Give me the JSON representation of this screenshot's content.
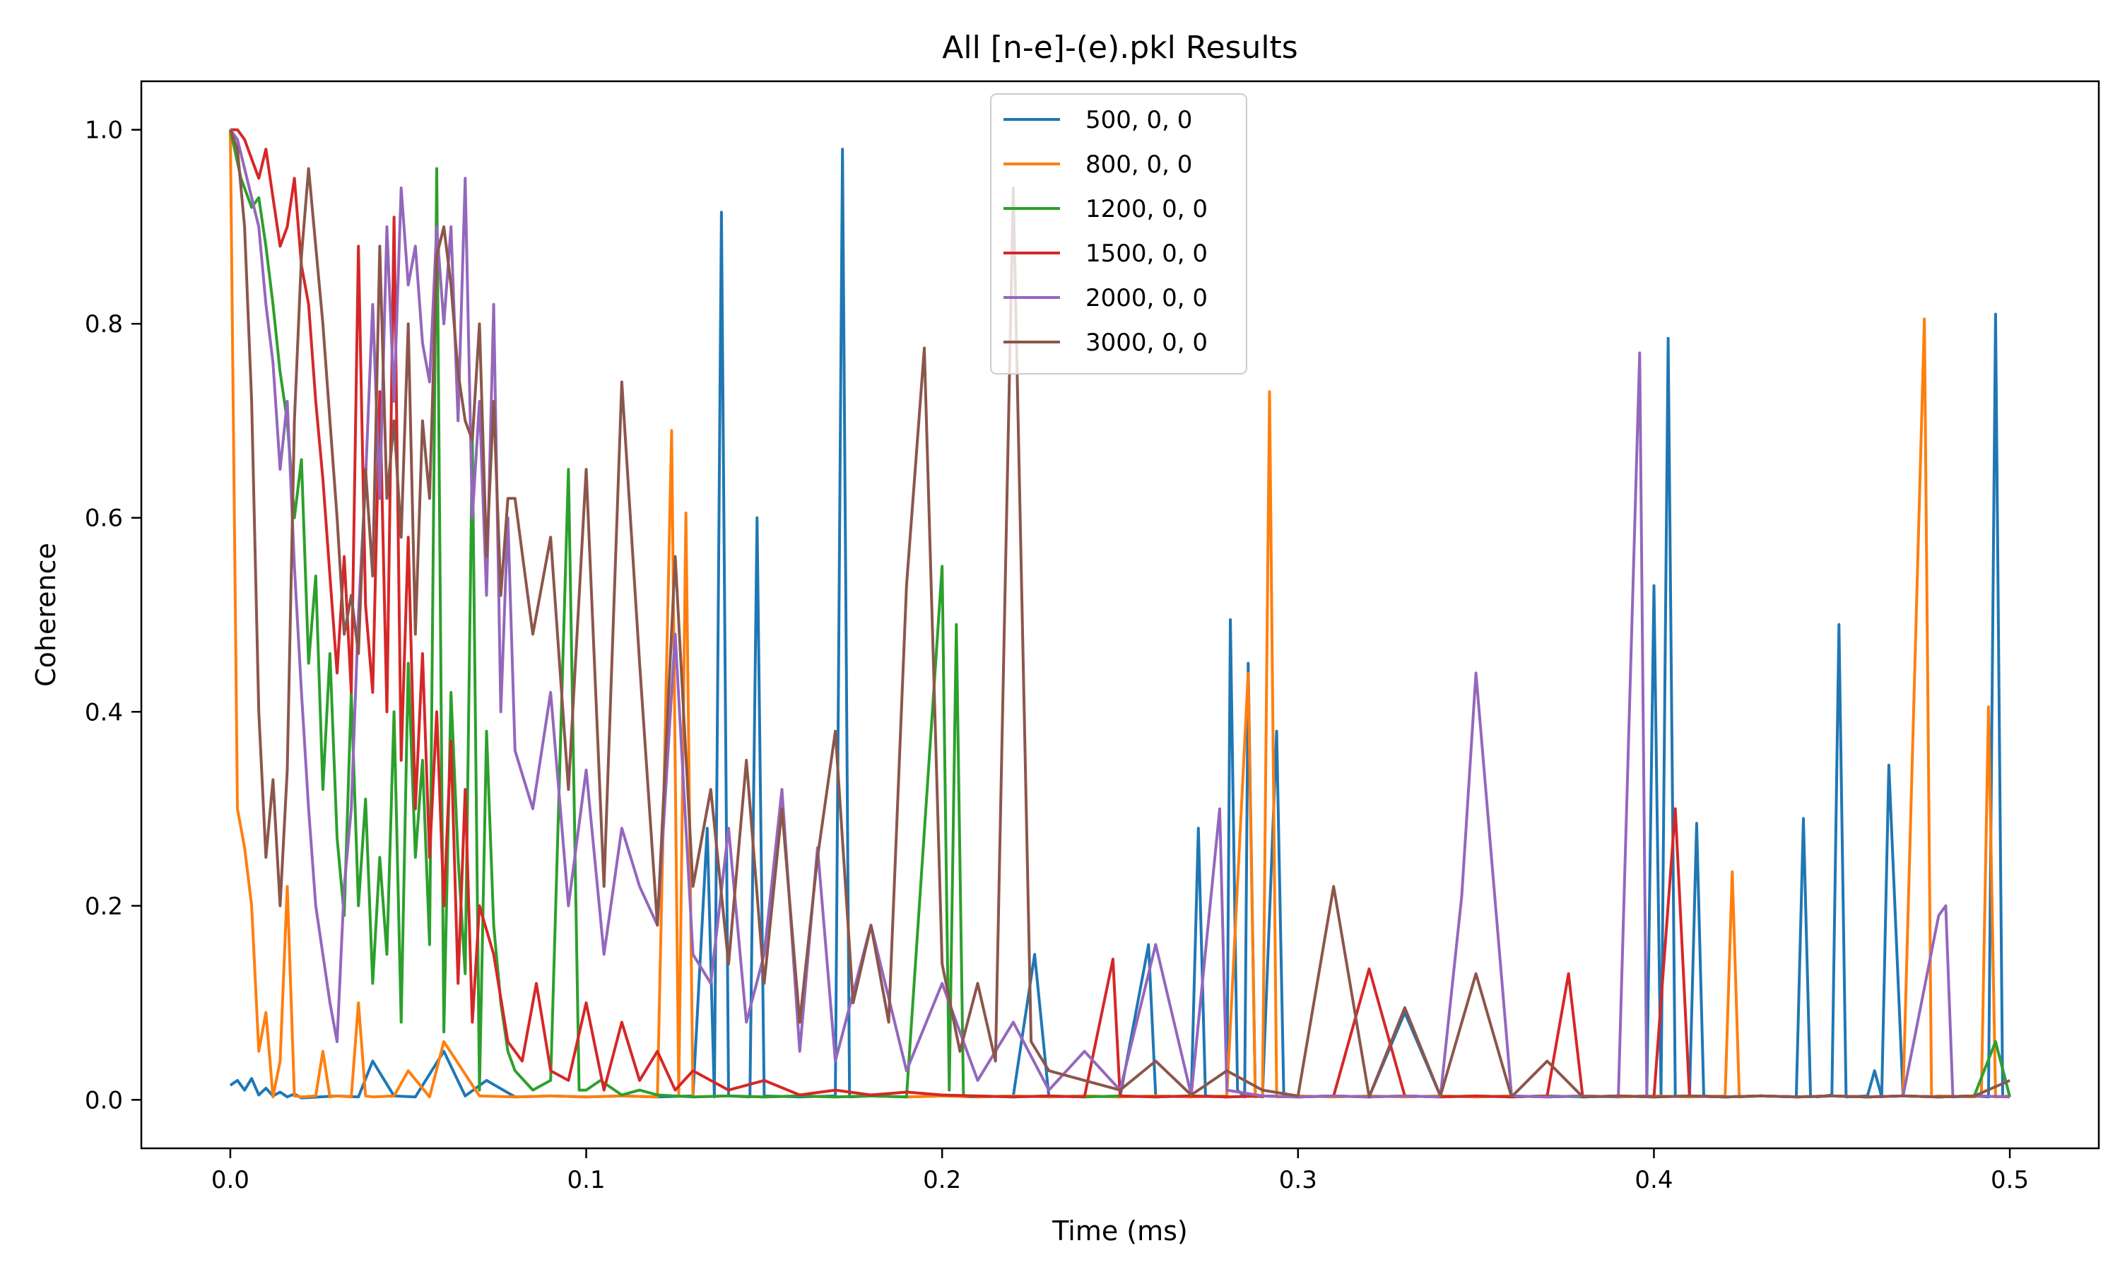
{
  "chart_data": {
    "type": "line",
    "title": "All [n-e]-(e).pkl Results",
    "xlabel": "Time (ms)",
    "ylabel": "Coherence",
    "xlim": [
      -0.025,
      0.525
    ],
    "ylim": [
      -0.05,
      1.05
    ],
    "xticks": [
      0.0,
      0.1,
      0.2,
      0.3,
      0.4,
      0.5
    ],
    "xtick_labels": [
      "0.0",
      "0.1",
      "0.2",
      "0.3",
      "0.4",
      "0.5"
    ],
    "yticks": [
      0.0,
      0.2,
      0.4,
      0.6,
      0.8,
      1.0
    ],
    "ytick_labels": [
      "0.0",
      "0.2",
      "0.4",
      "0.6",
      "0.8",
      "1.0"
    ],
    "grid": false,
    "legend_position": "top-center",
    "series": [
      {
        "name": "500, 0, 0",
        "color": "#1f77b4",
        "x": [
          0.0,
          0.002,
          0.004,
          0.006,
          0.008,
          0.01,
          0.012,
          0.014,
          0.016,
          0.018,
          0.02,
          0.03,
          0.036,
          0.04,
          0.046,
          0.052,
          0.06,
          0.066,
          0.072,
          0.08,
          0.09,
          0.1,
          0.11,
          0.12,
          0.13,
          0.134,
          0.136,
          0.138,
          0.14,
          0.146,
          0.148,
          0.15,
          0.16,
          0.17,
          0.172,
          0.174,
          0.18,
          0.19,
          0.2,
          0.21,
          0.22,
          0.226,
          0.23,
          0.24,
          0.25,
          0.258,
          0.26,
          0.27,
          0.272,
          0.274,
          0.28,
          0.281,
          0.283,
          0.285,
          0.286,
          0.288,
          0.29,
          0.294,
          0.296,
          0.3,
          0.31,
          0.32,
          0.33,
          0.34,
          0.35,
          0.36,
          0.37,
          0.38,
          0.39,
          0.398,
          0.4,
          0.402,
          0.404,
          0.406,
          0.41,
          0.412,
          0.414,
          0.42,
          0.43,
          0.44,
          0.442,
          0.444,
          0.446,
          0.45,
          0.452,
          0.454,
          0.46,
          0.462,
          0.464,
          0.466,
          0.47,
          0.48,
          0.49,
          0.494,
          0.496,
          0.498,
          0.5
        ],
        "y": [
          0.015,
          0.02,
          0.01,
          0.022,
          0.005,
          0.012,
          0.004,
          0.008,
          0.003,
          0.006,
          0.002,
          0.004,
          0.003,
          0.04,
          0.004,
          0.003,
          0.05,
          0.004,
          0.02,
          0.003,
          0.004,
          0.003,
          0.004,
          0.003,
          0.004,
          0.28,
          0.003,
          0.915,
          0.004,
          0.003,
          0.6,
          0.004,
          0.003,
          0.004,
          0.98,
          0.003,
          0.004,
          0.003,
          0.004,
          0.003,
          0.004,
          0.15,
          0.003,
          0.004,
          0.003,
          0.16,
          0.004,
          0.003,
          0.28,
          0.004,
          0.003,
          0.495,
          0.01,
          0.003,
          0.45,
          0.004,
          0.003,
          0.38,
          0.004,
          0.003,
          0.004,
          0.003,
          0.09,
          0.004,
          0.003,
          0.004,
          0.003,
          0.004,
          0.003,
          0.004,
          0.53,
          0.005,
          0.785,
          0.004,
          0.003,
          0.285,
          0.004,
          0.003,
          0.004,
          0.003,
          0.29,
          0.004,
          0.003,
          0.005,
          0.49,
          0.003,
          0.004,
          0.03,
          0.003,
          0.345,
          0.004,
          0.003,
          0.004,
          0.003,
          0.81,
          0.004,
          0.003
        ]
      },
      {
        "name": "800, 0, 0",
        "color": "#ff7f0e",
        "x": [
          0.0,
          0.002,
          0.004,
          0.006,
          0.008,
          0.01,
          0.012,
          0.014,
          0.016,
          0.018,
          0.02,
          0.024,
          0.026,
          0.028,
          0.03,
          0.034,
          0.036,
          0.038,
          0.04,
          0.046,
          0.05,
          0.056,
          0.06,
          0.07,
          0.08,
          0.09,
          0.1,
          0.11,
          0.12,
          0.124,
          0.126,
          0.128,
          0.13,
          0.14,
          0.15,
          0.16,
          0.17,
          0.18,
          0.19,
          0.2,
          0.21,
          0.22,
          0.23,
          0.24,
          0.25,
          0.26,
          0.27,
          0.28,
          0.286,
          0.288,
          0.29,
          0.292,
          0.294,
          0.3,
          0.31,
          0.32,
          0.33,
          0.34,
          0.35,
          0.36,
          0.37,
          0.38,
          0.39,
          0.4,
          0.41,
          0.42,
          0.422,
          0.424,
          0.43,
          0.44,
          0.45,
          0.46,
          0.47,
          0.476,
          0.478,
          0.48,
          0.49,
          0.492,
          0.494,
          0.496,
          0.5
        ],
        "y": [
          1.0,
          0.3,
          0.26,
          0.2,
          0.05,
          0.09,
          0.003,
          0.04,
          0.22,
          0.004,
          0.003,
          0.004,
          0.05,
          0.003,
          0.004,
          0.003,
          0.1,
          0.004,
          0.003,
          0.004,
          0.03,
          0.003,
          0.06,
          0.004,
          0.003,
          0.004,
          0.003,
          0.004,
          0.003,
          0.69,
          0.004,
          0.605,
          0.003,
          0.004,
          0.003,
          0.004,
          0.003,
          0.004,
          0.003,
          0.004,
          0.003,
          0.004,
          0.003,
          0.004,
          0.003,
          0.004,
          0.003,
          0.004,
          0.44,
          0.003,
          0.004,
          0.73,
          0.003,
          0.004,
          0.003,
          0.004,
          0.003,
          0.004,
          0.003,
          0.004,
          0.003,
          0.004,
          0.003,
          0.004,
          0.003,
          0.004,
          0.235,
          0.003,
          0.004,
          0.003,
          0.004,
          0.003,
          0.004,
          0.805,
          0.003,
          0.004,
          0.003,
          0.004,
          0.405,
          0.003,
          0.004
        ]
      },
      {
        "name": "1200, 0, 0",
        "color": "#2ca02c",
        "x": [
          0.0,
          0.003,
          0.006,
          0.008,
          0.01,
          0.012,
          0.014,
          0.016,
          0.018,
          0.02,
          0.022,
          0.024,
          0.026,
          0.028,
          0.03,
          0.032,
          0.034,
          0.036,
          0.038,
          0.04,
          0.042,
          0.044,
          0.046,
          0.048,
          0.05,
          0.052,
          0.054,
          0.056,
          0.058,
          0.06,
          0.062,
          0.064,
          0.066,
          0.068,
          0.07,
          0.072,
          0.074,
          0.076,
          0.078,
          0.08,
          0.085,
          0.09,
          0.095,
          0.098,
          0.1,
          0.104,
          0.11,
          0.115,
          0.12,
          0.13,
          0.14,
          0.15,
          0.16,
          0.17,
          0.18,
          0.19,
          0.2,
          0.202,
          0.204,
          0.206,
          0.208,
          0.21,
          0.22,
          0.23,
          0.24,
          0.25,
          0.26,
          0.27,
          0.28,
          0.29,
          0.3,
          0.31,
          0.32,
          0.33,
          0.34,
          0.35,
          0.36,
          0.37,
          0.38,
          0.39,
          0.4,
          0.41,
          0.42,
          0.43,
          0.44,
          0.45,
          0.46,
          0.47,
          0.48,
          0.49,
          0.496,
          0.5
        ],
        "y": [
          1.0,
          0.95,
          0.92,
          0.93,
          0.88,
          0.82,
          0.75,
          0.7,
          0.6,
          0.66,
          0.45,
          0.54,
          0.32,
          0.46,
          0.27,
          0.19,
          0.42,
          0.2,
          0.31,
          0.12,
          0.25,
          0.15,
          0.4,
          0.08,
          0.45,
          0.25,
          0.35,
          0.16,
          0.96,
          0.07,
          0.42,
          0.25,
          0.13,
          0.68,
          0.01,
          0.38,
          0.18,
          0.1,
          0.05,
          0.03,
          0.01,
          0.02,
          0.65,
          0.01,
          0.01,
          0.02,
          0.005,
          0.01,
          0.005,
          0.003,
          0.004,
          0.003,
          0.004,
          0.003,
          0.004,
          0.003,
          0.55,
          0.01,
          0.49,
          0.005,
          0.003,
          0.004,
          0.003,
          0.004,
          0.003,
          0.004,
          0.003,
          0.004,
          0.003,
          0.004,
          0.003,
          0.004,
          0.003,
          0.004,
          0.003,
          0.004,
          0.003,
          0.004,
          0.003,
          0.004,
          0.003,
          0.004,
          0.003,
          0.004,
          0.003,
          0.004,
          0.003,
          0.004,
          0.003,
          0.004,
          0.06,
          0.003
        ]
      },
      {
        "name": "1500, 0, 0",
        "color": "#d62728",
        "x": [
          0.0,
          0.002,
          0.004,
          0.006,
          0.008,
          0.01,
          0.012,
          0.014,
          0.016,
          0.018,
          0.02,
          0.022,
          0.024,
          0.026,
          0.028,
          0.03,
          0.032,
          0.034,
          0.036,
          0.038,
          0.04,
          0.042,
          0.044,
          0.046,
          0.048,
          0.05,
          0.052,
          0.054,
          0.056,
          0.058,
          0.06,
          0.062,
          0.064,
          0.066,
          0.068,
          0.07,
          0.074,
          0.078,
          0.082,
          0.086,
          0.09,
          0.095,
          0.1,
          0.105,
          0.11,
          0.115,
          0.12,
          0.125,
          0.13,
          0.14,
          0.15,
          0.16,
          0.17,
          0.18,
          0.19,
          0.2,
          0.21,
          0.22,
          0.23,
          0.24,
          0.248,
          0.25,
          0.26,
          0.27,
          0.28,
          0.29,
          0.3,
          0.31,
          0.32,
          0.33,
          0.34,
          0.35,
          0.36,
          0.37,
          0.376,
          0.38,
          0.39,
          0.4,
          0.406,
          0.41,
          0.42,
          0.43,
          0.44,
          0.45,
          0.46,
          0.47,
          0.48,
          0.49,
          0.5
        ],
        "y": [
          1.0,
          1.0,
          0.99,
          0.97,
          0.95,
          0.98,
          0.93,
          0.88,
          0.9,
          0.95,
          0.86,
          0.82,
          0.72,
          0.64,
          0.54,
          0.44,
          0.56,
          0.42,
          0.88,
          0.51,
          0.42,
          0.73,
          0.4,
          0.91,
          0.35,
          0.58,
          0.3,
          0.46,
          0.25,
          0.4,
          0.2,
          0.37,
          0.12,
          0.32,
          0.08,
          0.2,
          0.15,
          0.06,
          0.04,
          0.12,
          0.03,
          0.02,
          0.1,
          0.01,
          0.08,
          0.02,
          0.05,
          0.01,
          0.03,
          0.01,
          0.02,
          0.005,
          0.01,
          0.005,
          0.008,
          0.005,
          0.004,
          0.003,
          0.004,
          0.003,
          0.145,
          0.004,
          0.003,
          0.004,
          0.003,
          0.004,
          0.003,
          0.004,
          0.135,
          0.004,
          0.003,
          0.004,
          0.003,
          0.004,
          0.13,
          0.003,
          0.004,
          0.003,
          0.3,
          0.004,
          0.003,
          0.004,
          0.003,
          0.004,
          0.003,
          0.004,
          0.003,
          0.004,
          0.003
        ]
      },
      {
        "name": "2000, 0, 0",
        "color": "#9467bd",
        "x": [
          0.0,
          0.002,
          0.004,
          0.006,
          0.008,
          0.01,
          0.012,
          0.014,
          0.016,
          0.018,
          0.02,
          0.022,
          0.024,
          0.026,
          0.028,
          0.03,
          0.032,
          0.034,
          0.036,
          0.038,
          0.04,
          0.042,
          0.044,
          0.046,
          0.048,
          0.05,
          0.052,
          0.054,
          0.056,
          0.058,
          0.06,
          0.062,
          0.064,
          0.066,
          0.068,
          0.07,
          0.072,
          0.074,
          0.076,
          0.078,
          0.08,
          0.085,
          0.09,
          0.095,
          0.1,
          0.105,
          0.11,
          0.115,
          0.12,
          0.125,
          0.13,
          0.135,
          0.14,
          0.145,
          0.15,
          0.155,
          0.16,
          0.165,
          0.17,
          0.18,
          0.19,
          0.2,
          0.21,
          0.22,
          0.23,
          0.24,
          0.25,
          0.26,
          0.27,
          0.278,
          0.28,
          0.29,
          0.3,
          0.31,
          0.32,
          0.33,
          0.34,
          0.346,
          0.35,
          0.36,
          0.37,
          0.38,
          0.39,
          0.396,
          0.398,
          0.4,
          0.41,
          0.42,
          0.43,
          0.44,
          0.45,
          0.46,
          0.47,
          0.48,
          0.482,
          0.484,
          0.49,
          0.5
        ],
        "y": [
          1.0,
          0.99,
          0.96,
          0.93,
          0.9,
          0.82,
          0.76,
          0.65,
          0.72,
          0.55,
          0.42,
          0.3,
          0.2,
          0.15,
          0.1,
          0.06,
          0.22,
          0.3,
          0.5,
          0.64,
          0.82,
          0.62,
          0.9,
          0.72,
          0.94,
          0.84,
          0.88,
          0.78,
          0.74,
          0.9,
          0.8,
          0.9,
          0.7,
          0.95,
          0.6,
          0.72,
          0.52,
          0.82,
          0.4,
          0.6,
          0.36,
          0.3,
          0.42,
          0.2,
          0.34,
          0.15,
          0.28,
          0.22,
          0.18,
          0.48,
          0.15,
          0.12,
          0.28,
          0.08,
          0.15,
          0.32,
          0.05,
          0.26,
          0.04,
          0.18,
          0.03,
          0.12,
          0.02,
          0.08,
          0.01,
          0.05,
          0.01,
          0.16,
          0.005,
          0.3,
          0.01,
          0.004,
          0.003,
          0.004,
          0.003,
          0.004,
          0.003,
          0.21,
          0.44,
          0.004,
          0.003,
          0.004,
          0.003,
          0.77,
          0.004,
          0.003,
          0.004,
          0.003,
          0.004,
          0.003,
          0.004,
          0.003,
          0.004,
          0.19,
          0.2,
          0.003,
          0.004,
          0.003
        ]
      },
      {
        "name": "3000, 0, 0",
        "color": "#8c564b",
        "x": [
          0.0,
          0.002,
          0.004,
          0.006,
          0.008,
          0.01,
          0.012,
          0.014,
          0.016,
          0.018,
          0.02,
          0.022,
          0.024,
          0.026,
          0.028,
          0.03,
          0.032,
          0.034,
          0.036,
          0.038,
          0.04,
          0.042,
          0.044,
          0.046,
          0.048,
          0.05,
          0.052,
          0.054,
          0.056,
          0.058,
          0.06,
          0.062,
          0.064,
          0.066,
          0.068,
          0.07,
          0.072,
          0.074,
          0.076,
          0.078,
          0.08,
          0.085,
          0.09,
          0.095,
          0.1,
          0.105,
          0.11,
          0.115,
          0.12,
          0.125,
          0.13,
          0.135,
          0.14,
          0.145,
          0.15,
          0.155,
          0.16,
          0.165,
          0.17,
          0.175,
          0.18,
          0.185,
          0.19,
          0.195,
          0.2,
          0.205,
          0.21,
          0.215,
          0.22,
          0.225,
          0.23,
          0.24,
          0.25,
          0.26,
          0.27,
          0.28,
          0.29,
          0.3,
          0.31,
          0.32,
          0.33,
          0.34,
          0.35,
          0.36,
          0.37,
          0.38,
          0.39,
          0.4,
          0.41,
          0.42,
          0.43,
          0.44,
          0.45,
          0.46,
          0.47,
          0.48,
          0.49,
          0.5
        ],
        "y": [
          1.0,
          0.98,
          0.9,
          0.72,
          0.4,
          0.25,
          0.33,
          0.2,
          0.34,
          0.7,
          0.87,
          0.96,
          0.88,
          0.8,
          0.7,
          0.6,
          0.48,
          0.52,
          0.46,
          0.65,
          0.54,
          0.88,
          0.62,
          0.7,
          0.58,
          0.8,
          0.48,
          0.7,
          0.62,
          0.87,
          0.9,
          0.84,
          0.75,
          0.7,
          0.68,
          0.8,
          0.56,
          0.72,
          0.52,
          0.62,
          0.62,
          0.48,
          0.58,
          0.32,
          0.65,
          0.22,
          0.74,
          0.45,
          0.18,
          0.56,
          0.22,
          0.32,
          0.14,
          0.35,
          0.12,
          0.3,
          0.08,
          0.25,
          0.38,
          0.1,
          0.18,
          0.08,
          0.53,
          0.775,
          0.14,
          0.05,
          0.12,
          0.04,
          0.94,
          0.06,
          0.03,
          0.02,
          0.01,
          0.04,
          0.005,
          0.03,
          0.01,
          0.004,
          0.22,
          0.003,
          0.095,
          0.004,
          0.13,
          0.003,
          0.04,
          0.003,
          0.004,
          0.003,
          0.004,
          0.003,
          0.004,
          0.003,
          0.004,
          0.003,
          0.004,
          0.003,
          0.004,
          0.02
        ]
      }
    ]
  }
}
